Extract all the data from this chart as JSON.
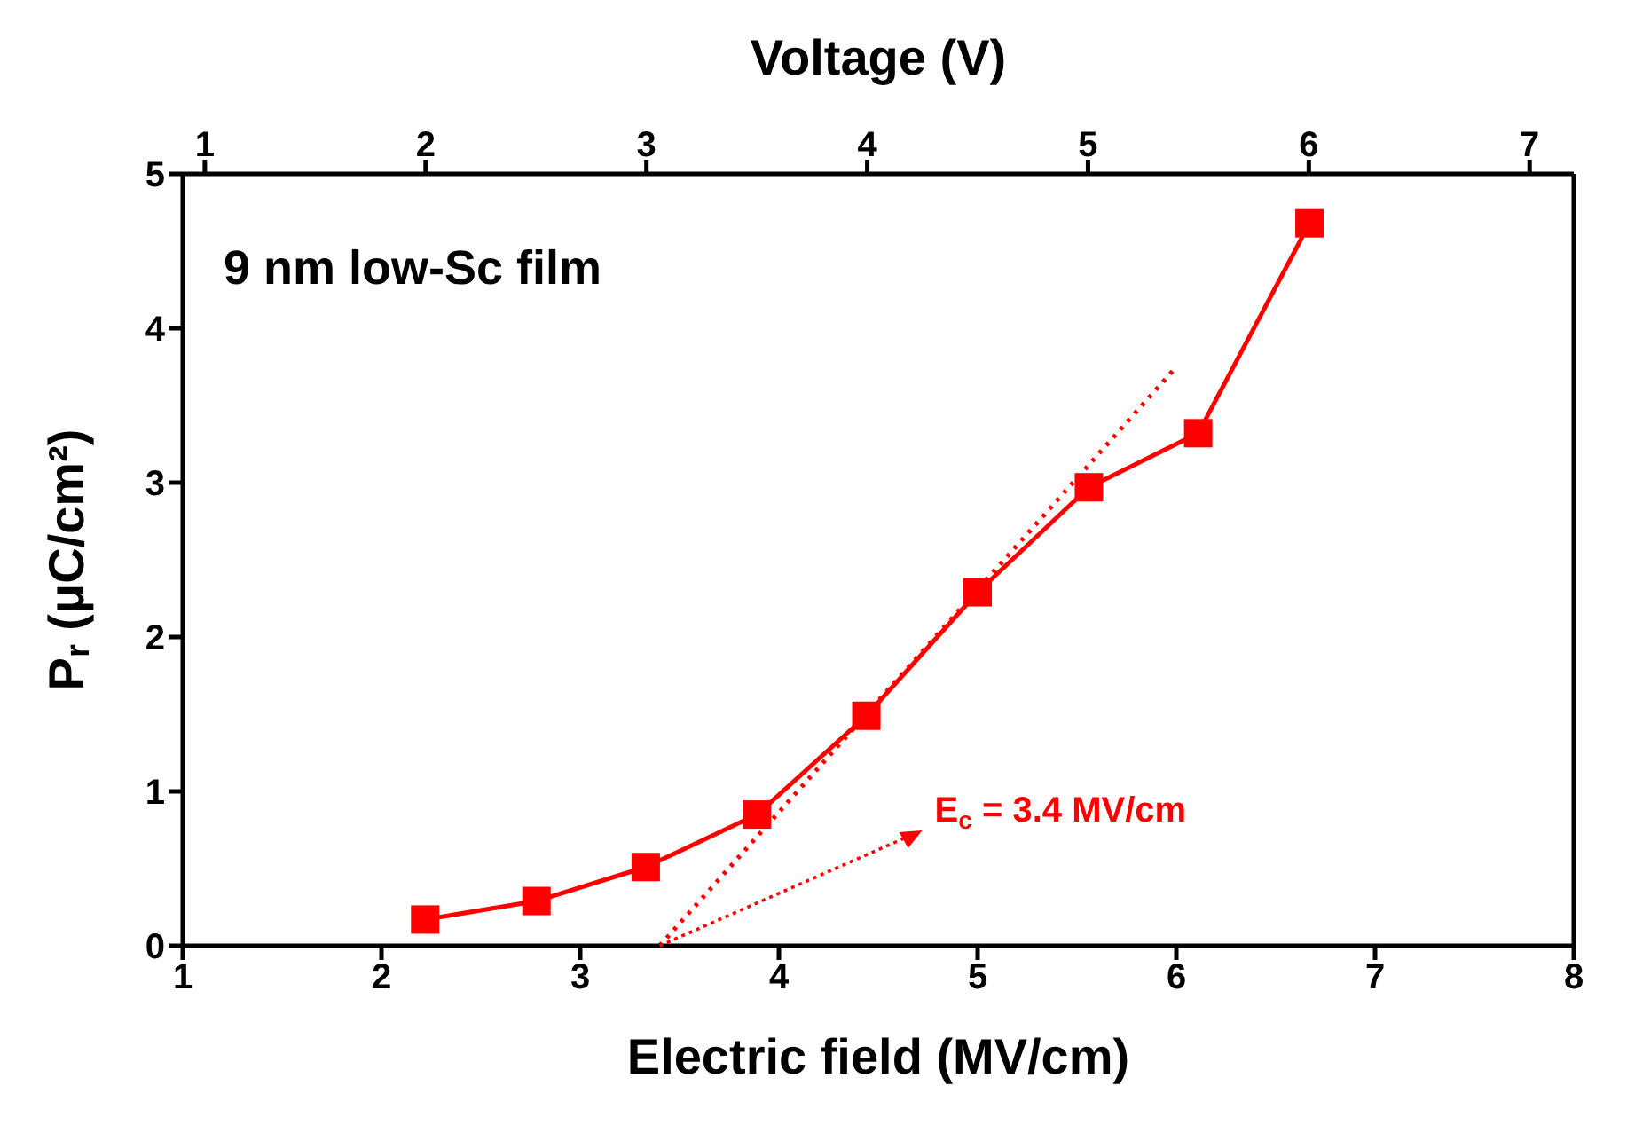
{
  "chart_data": {
    "type": "line",
    "xlabel": "Electric field (MV/cm)",
    "ylabel": "P$_{r}$ (μC/cm²)",
    "x2label": "Voltage (V)",
    "xlim": [
      1,
      8
    ],
    "xticks": [
      1,
      2,
      3,
      4,
      5,
      6,
      7,
      8
    ],
    "ylim": [
      0,
      5
    ],
    "yticks": [
      0,
      1,
      2,
      3,
      4,
      5
    ],
    "x2lim": [
      0.9,
      7.2
    ],
    "x2ticks": [
      1,
      2,
      3,
      4,
      5,
      6,
      7
    ],
    "series": [
      {
        "type": "line",
        "color": "#ff0000",
        "marker": "square",
        "line_style": "solid",
        "x": [
          2.22,
          2.78,
          3.33,
          3.89,
          4.44,
          5.0,
          5.56,
          6.11,
          6.67
        ],
        "values": [
          0.17,
          0.29,
          0.51,
          0.85,
          1.49,
          2.29,
          2.97,
          3.32,
          4.68
        ]
      },
      {
        "type": "line",
        "color": "#ff0000",
        "marker": "none",
        "line_style": "dotted",
        "x": [
          3.4,
          6.0
        ],
        "values": [
          0,
          3.75
        ]
      }
    ],
    "annotations": [
      "9 nm low-Sc film",
      {
        "text": "E$_{c}$ = 3.4 MV/cm",
        "x": 3.4,
        "y": 0
      }
    ],
    "grid": false,
    "legend": false
  }
}
